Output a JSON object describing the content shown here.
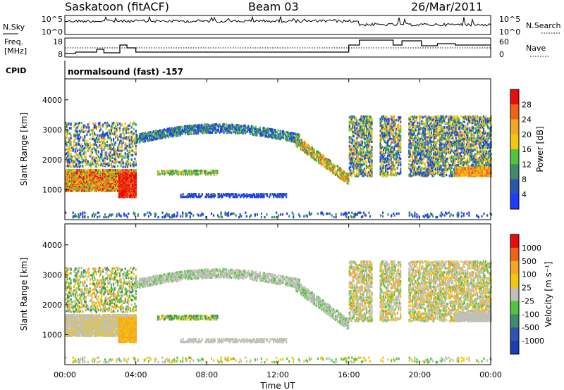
{
  "header": {
    "station": "Saskatoon (fitACF)",
    "beam": "Beam 03",
    "date": "26/Mar/2011"
  },
  "status_panels": {
    "nsky": {
      "left_label": "N.Sky",
      "right_label": "N.Search",
      "tick_top_left": "10^5",
      "tick_bottom_left": "10^0",
      "tick_top_right": "10^5",
      "tick_bottom_right": "10^0"
    },
    "freq": {
      "left_label_1": "Freq.",
      "left_label_2": "[MHz]",
      "right_label": "Nave",
      "tick_top_left": "18",
      "tick_bottom_left": "8",
      "tick_top_right": "60",
      "tick_bottom_right": "0"
    },
    "cpid": {
      "label": "CPID",
      "text": "normalsound (fast) -157"
    }
  },
  "chart_data": [
    {
      "type": "heatmap",
      "name": "power",
      "ylabel": "Slant Range [km]",
      "ylim": [
        0,
        4700
      ],
      "yticks": [
        "1000",
        "2000",
        "3000",
        "4000"
      ],
      "colorbar_label": "Power [dB]",
      "colorbar_ticks": [
        "4",
        "8",
        "12",
        "16",
        "20",
        "24",
        "28"
      ],
      "colors": [
        "#1e3cff",
        "#2a55b0",
        "#3f8c6a",
        "#52c43f",
        "#f2c80c",
        "#f5a623",
        "#f0621a",
        "#e80c0c"
      ]
    },
    {
      "type": "heatmap",
      "name": "velocity",
      "ylabel": "Slant Range [km]",
      "ylim": [
        0,
        4700
      ],
      "yticks": [
        "1000",
        "2000",
        "3000",
        "4000"
      ],
      "colorbar_label": "Velocity [m s⁻¹]",
      "colorbar_ticks": [
        "1000",
        "500",
        "100",
        "25",
        "-25",
        "-100",
        "-500",
        "-1000"
      ],
      "colors": [
        "#1e3cb4",
        "#2a55b0",
        "#3f8c6a",
        "#52c43f",
        "#c0c0b8",
        "#f2c80c",
        "#f5a623",
        "#f0621a",
        "#e80c0c"
      ]
    }
  ],
  "time_axis": {
    "label": "Time UT",
    "ticks": [
      "00:00",
      "04:00",
      "08:00",
      "12:00",
      "16:00",
      "20:00",
      "00:00"
    ]
  }
}
